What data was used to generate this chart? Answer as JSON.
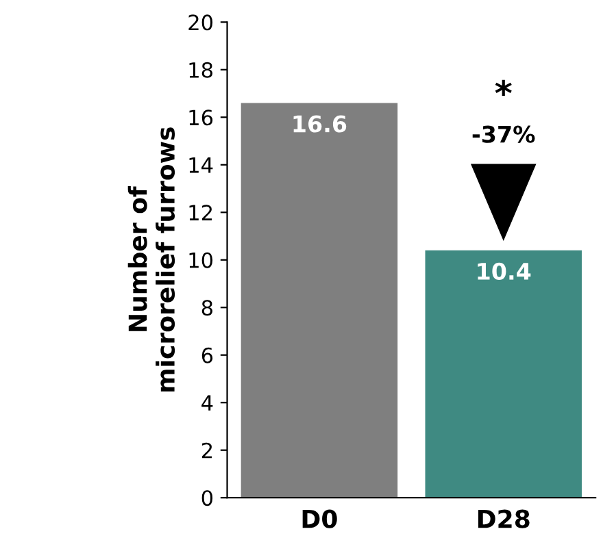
{
  "chart_data": {
    "type": "bar",
    "ylabel": "Number of\nmicrorelief furrows",
    "categories": [
      "D0",
      "D28"
    ],
    "values": [
      16.6,
      10.4
    ],
    "colors": [
      "#7f7f7f",
      "#3f8a82"
    ],
    "ylim": [
      0,
      20
    ],
    "yticks": [
      0,
      2,
      4,
      6,
      8,
      10,
      12,
      14,
      16,
      18,
      20
    ],
    "data_labels": true,
    "grid": false,
    "legend": false,
    "annotations": [
      "*",
      "-37%"
    ]
  }
}
